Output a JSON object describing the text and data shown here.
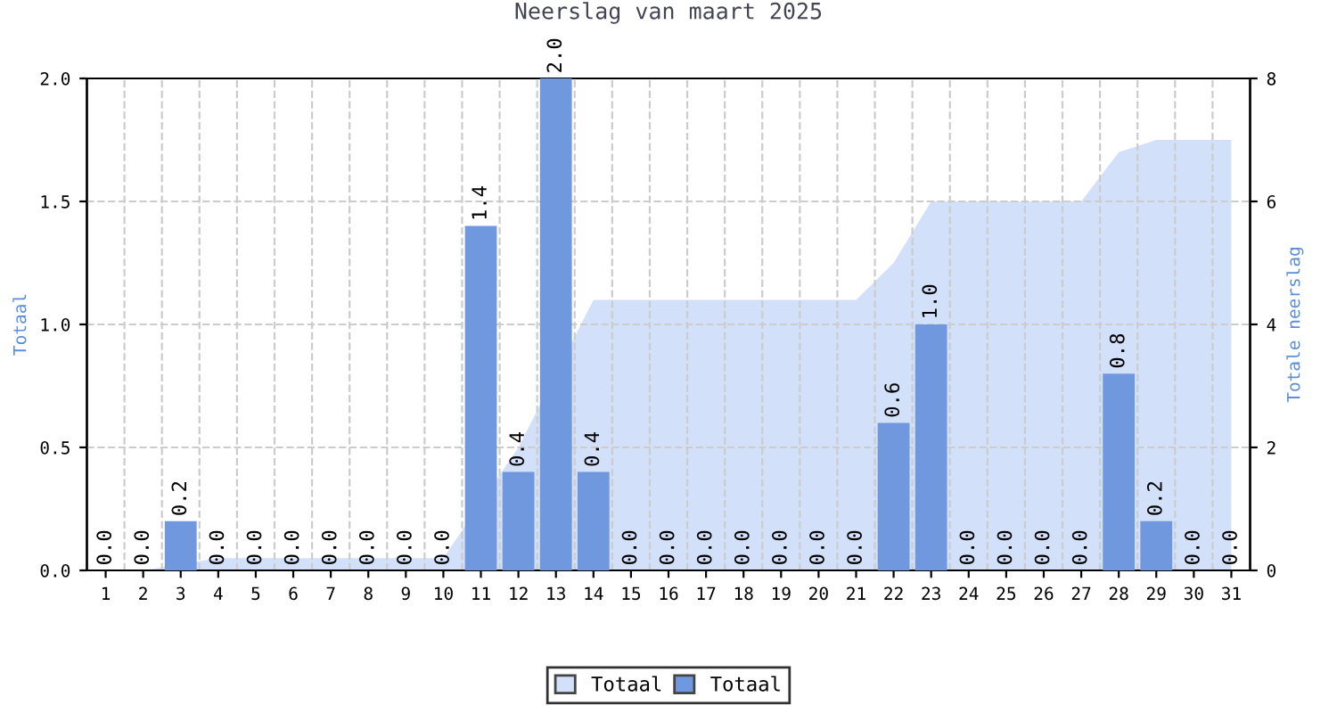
{
  "chart_data": {
    "type": "bar",
    "title": "Neerslag van maart 2025",
    "ylabel": "Totaal",
    "y2label": "Totale neerslag",
    "categories": [
      "1",
      "2",
      "3",
      "4",
      "5",
      "6",
      "7",
      "8",
      "9",
      "10",
      "11",
      "12",
      "13",
      "14",
      "15",
      "16",
      "17",
      "18",
      "19",
      "20",
      "21",
      "22",
      "23",
      "24",
      "25",
      "26",
      "27",
      "28",
      "29",
      "30",
      "31"
    ],
    "series": [
      {
        "name": "Totaal",
        "type": "area",
        "axis": "y2",
        "color": "#d3e0fa",
        "values": [
          0,
          0,
          null,
          0.2,
          0.2,
          0.2,
          0.2,
          0.2,
          0.2,
          0.2,
          null,
          2.0,
          null,
          4.4,
          4.4,
          4.4,
          4.4,
          4.4,
          4.4,
          4.4,
          4.4,
          5.0,
          6.0,
          6.0,
          6.0,
          6.0,
          6.0,
          6.8,
          7.0,
          7.0,
          7.0
        ]
      },
      {
        "name": "Totaal",
        "color": "#6f98de",
        "values": [
          0,
          0,
          0.2,
          0,
          0,
          0,
          0,
          0,
          0,
          0,
          1.4,
          0.4,
          2.0,
          0.4,
          0,
          0,
          0,
          0,
          0,
          0,
          0,
          0.6,
          1.0,
          0,
          0,
          0,
          0,
          0.8,
          0.2,
          0,
          0
        ],
        "value_labels": [
          "0.0",
          "0.0",
          "0.2",
          "0.0",
          "0.0",
          "0.0",
          "0.0",
          "0.0",
          "0.0",
          "0.0",
          "1.4",
          "0.4",
          "2.0",
          "0.4",
          "0.0",
          "0.0",
          "0.0",
          "0.0",
          "0.0",
          "0.0",
          "0.0",
          "0.6",
          "1.0",
          "0.0",
          "0.0",
          "0.0",
          "0.0",
          "0.8",
          "0.2",
          "0.0",
          "0.0"
        ]
      }
    ],
    "ylim": [
      0,
      2
    ],
    "yticks": [
      {
        "value": 0,
        "label": "0.0"
      },
      {
        "value": 0.5,
        "label": "0.5"
      },
      {
        "value": 1,
        "label": "1.0"
      },
      {
        "value": 1.5,
        "label": "1.5"
      },
      {
        "value": 2,
        "label": "2.0"
      }
    ],
    "y2lim": [
      0,
      8
    ],
    "y2ticks": [
      0,
      2,
      4,
      6,
      8
    ],
    "grid": true,
    "legend": "bottom"
  }
}
